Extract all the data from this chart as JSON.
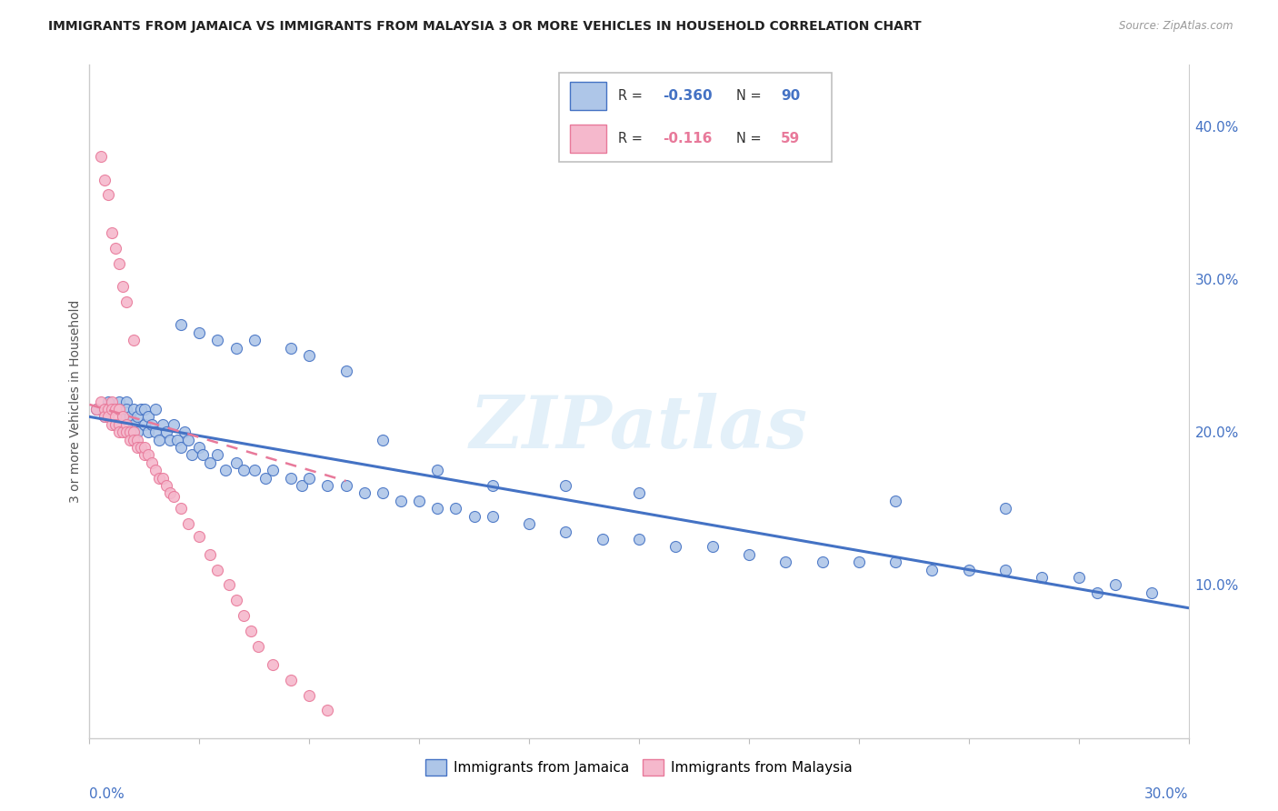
{
  "title": "IMMIGRANTS FROM JAMAICA VS IMMIGRANTS FROM MALAYSIA 3 OR MORE VEHICLES IN HOUSEHOLD CORRELATION CHART",
  "source": "Source: ZipAtlas.com",
  "ylabel": "3 or more Vehicles in Household",
  "ylabel_right_ticks": [
    "40.0%",
    "30.0%",
    "20.0%",
    "10.0%"
  ],
  "ylabel_right_vals": [
    0.4,
    0.3,
    0.2,
    0.1
  ],
  "xmin": 0.0,
  "xmax": 0.3,
  "ymin": 0.0,
  "ymax": 0.44,
  "jamaica_color": "#aec6e8",
  "malaysia_color": "#f5b8cc",
  "jamaica_line_color": "#4472c4",
  "malaysia_line_color": "#e8799a",
  "jamaica_r": "-0.360",
  "jamaica_n": "90",
  "malaysia_r": "-0.116",
  "malaysia_n": "59",
  "jamaica_scatter_x": [
    0.002,
    0.004,
    0.005,
    0.006,
    0.007,
    0.008,
    0.008,
    0.009,
    0.01,
    0.01,
    0.011,
    0.012,
    0.012,
    0.013,
    0.013,
    0.014,
    0.015,
    0.015,
    0.016,
    0.016,
    0.017,
    0.018,
    0.018,
    0.019,
    0.02,
    0.021,
    0.022,
    0.023,
    0.024,
    0.025,
    0.026,
    0.027,
    0.028,
    0.03,
    0.031,
    0.033,
    0.035,
    0.037,
    0.04,
    0.042,
    0.045,
    0.048,
    0.05,
    0.055,
    0.058,
    0.06,
    0.065,
    0.07,
    0.075,
    0.08,
    0.085,
    0.09,
    0.095,
    0.1,
    0.105,
    0.11,
    0.12,
    0.13,
    0.14,
    0.15,
    0.16,
    0.17,
    0.18,
    0.19,
    0.2,
    0.21,
    0.22,
    0.23,
    0.24,
    0.25,
    0.26,
    0.27,
    0.28,
    0.29,
    0.025,
    0.03,
    0.035,
    0.04,
    0.045,
    0.055,
    0.06,
    0.07,
    0.08,
    0.095,
    0.11,
    0.13,
    0.15,
    0.22,
    0.25,
    0.275
  ],
  "jamaica_scatter_y": [
    0.215,
    0.21,
    0.22,
    0.215,
    0.205,
    0.22,
    0.215,
    0.21,
    0.22,
    0.215,
    0.21,
    0.205,
    0.215,
    0.2,
    0.21,
    0.215,
    0.205,
    0.215,
    0.2,
    0.21,
    0.205,
    0.2,
    0.215,
    0.195,
    0.205,
    0.2,
    0.195,
    0.205,
    0.195,
    0.19,
    0.2,
    0.195,
    0.185,
    0.19,
    0.185,
    0.18,
    0.185,
    0.175,
    0.18,
    0.175,
    0.175,
    0.17,
    0.175,
    0.17,
    0.165,
    0.17,
    0.165,
    0.165,
    0.16,
    0.16,
    0.155,
    0.155,
    0.15,
    0.15,
    0.145,
    0.145,
    0.14,
    0.135,
    0.13,
    0.13,
    0.125,
    0.125,
    0.12,
    0.115,
    0.115,
    0.115,
    0.115,
    0.11,
    0.11,
    0.11,
    0.105,
    0.105,
    0.1,
    0.095,
    0.27,
    0.265,
    0.26,
    0.255,
    0.26,
    0.255,
    0.25,
    0.24,
    0.195,
    0.175,
    0.165,
    0.165,
    0.16,
    0.155,
    0.15,
    0.095
  ],
  "malaysia_scatter_x": [
    0.002,
    0.003,
    0.004,
    0.004,
    0.005,
    0.005,
    0.006,
    0.006,
    0.006,
    0.007,
    0.007,
    0.007,
    0.008,
    0.008,
    0.008,
    0.009,
    0.009,
    0.01,
    0.01,
    0.011,
    0.011,
    0.012,
    0.012,
    0.013,
    0.013,
    0.014,
    0.015,
    0.015,
    0.016,
    0.017,
    0.018,
    0.019,
    0.02,
    0.021,
    0.022,
    0.023,
    0.025,
    0.027,
    0.03,
    0.033,
    0.035,
    0.038,
    0.04,
    0.042,
    0.044,
    0.046,
    0.05,
    0.055,
    0.06,
    0.065,
    0.003,
    0.004,
    0.005,
    0.006,
    0.007,
    0.008,
    0.009,
    0.01,
    0.012
  ],
  "malaysia_scatter_y": [
    0.215,
    0.22,
    0.215,
    0.21,
    0.215,
    0.21,
    0.22,
    0.215,
    0.205,
    0.215,
    0.21,
    0.205,
    0.215,
    0.205,
    0.2,
    0.21,
    0.2,
    0.205,
    0.2,
    0.2,
    0.195,
    0.2,
    0.195,
    0.195,
    0.19,
    0.19,
    0.185,
    0.19,
    0.185,
    0.18,
    0.175,
    0.17,
    0.17,
    0.165,
    0.16,
    0.158,
    0.15,
    0.14,
    0.132,
    0.12,
    0.11,
    0.1,
    0.09,
    0.08,
    0.07,
    0.06,
    0.048,
    0.038,
    0.028,
    0.018,
    0.38,
    0.365,
    0.355,
    0.33,
    0.32,
    0.31,
    0.295,
    0.285,
    0.26
  ],
  "watermark_text": "ZIPatlas",
  "background_color": "#ffffff",
  "grid_color": "#d8d8d8"
}
